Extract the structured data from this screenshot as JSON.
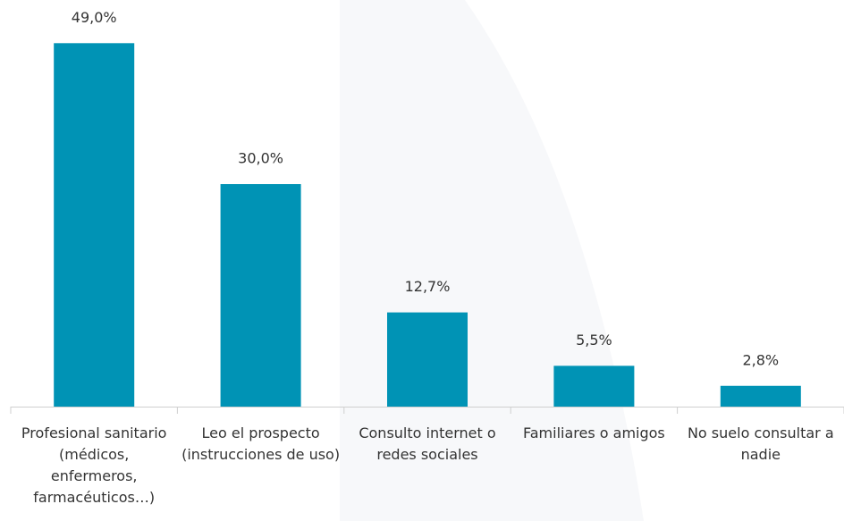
{
  "chart_data": {
    "type": "bar",
    "categories": [
      "Profesional sanitario (médicos, enfermeros, farmacéuticos…)",
      "Leo el prospecto (instrucciones de uso)",
      "Consulto internet o redes sociales",
      "Familiares o amigos",
      "No suelo consultar a nadie"
    ],
    "values": [
      49.0,
      30.0,
      12.7,
      5.5,
      2.8
    ],
    "value_labels": [
      "49,0%",
      "30,0%",
      "12,7%",
      "5,5%",
      "2,8%"
    ],
    "color": "#0093b5"
  }
}
